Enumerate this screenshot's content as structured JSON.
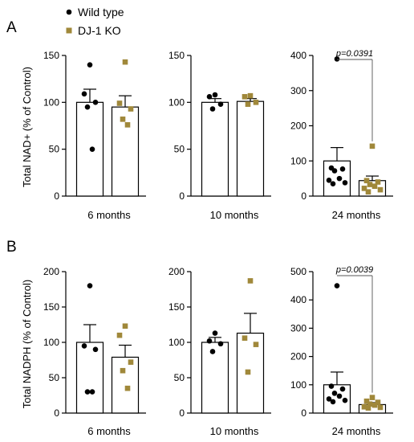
{
  "figure": {
    "panel_letters": [
      "A",
      "B"
    ],
    "legend": [
      {
        "label": "Wild type",
        "marker": "circle",
        "color": "#000000"
      },
      {
        "label": "DJ-1 KO",
        "marker": "square",
        "color": "#a0883a"
      }
    ]
  },
  "chart_data": [
    {
      "type": "bar",
      "row": 0,
      "col": 0,
      "ylabel": "Total NAD+ (% of Control)",
      "xlabel": "6 months",
      "ylim": [
        0,
        150
      ],
      "yticks": [
        0,
        50,
        100,
        150
      ],
      "categories": [
        "Wild type",
        "DJ-1 KO"
      ],
      "series": [
        {
          "name": "Wild type",
          "mean": 100,
          "sem": 14,
          "points": [
            140,
            109,
            100,
            95,
            50
          ]
        },
        {
          "name": "DJ-1 KO",
          "mean": 95,
          "sem": 12,
          "points": [
            143,
            99,
            93,
            82,
            76
          ]
        }
      ],
      "annotation": ""
    },
    {
      "type": "bar",
      "row": 0,
      "col": 1,
      "xlabel": "10 months",
      "ylim": [
        0,
        150
      ],
      "yticks": [
        0,
        50,
        100,
        150
      ],
      "categories": [
        "Wild type",
        "DJ-1 KO"
      ],
      "series": [
        {
          "name": "Wild type",
          "mean": 100,
          "sem": 4,
          "points": [
            108,
            106,
            98,
            93
          ]
        },
        {
          "name": "DJ-1 KO",
          "mean": 101,
          "sem": 3,
          "points": [
            107,
            106,
            100,
            98
          ]
        }
      ],
      "annotation": ""
    },
    {
      "type": "bar",
      "row": 0,
      "col": 2,
      "xlabel": "24 months",
      "ylim": [
        0,
        400
      ],
      "yticks": [
        0,
        100,
        200,
        300,
        400
      ],
      "categories": [
        "Wild type",
        "DJ-1 KO"
      ],
      "series": [
        {
          "name": "Wild type",
          "mean": 100,
          "sem": 38,
          "points": [
            390,
            80,
            77,
            72,
            50,
            45,
            38,
            35
          ]
        },
        {
          "name": "DJ-1 KO",
          "mean": 44,
          "sem": 13,
          "points": [
            142,
            44,
            40,
            33,
            28,
            22,
            18,
            12
          ]
        }
      ],
      "annotation": "p=0.0391"
    },
    {
      "type": "bar",
      "row": 1,
      "col": 0,
      "ylabel": "Total NADPH (% of Control)",
      "xlabel": "6 months",
      "ylim": [
        0,
        200
      ],
      "yticks": [
        0,
        50,
        100,
        150,
        200
      ],
      "categories": [
        "Wild type",
        "DJ-1 KO"
      ],
      "series": [
        {
          "name": "Wild type",
          "mean": 100,
          "sem": 25,
          "points": [
            180,
            95,
            90,
            30,
            30
          ]
        },
        {
          "name": "DJ-1 KO",
          "mean": 79,
          "sem": 17,
          "points": [
            123,
            110,
            72,
            60,
            35
          ]
        }
      ],
      "annotation": ""
    },
    {
      "type": "bar",
      "row": 1,
      "col": 1,
      "xlabel": "10 months",
      "ylim": [
        0,
        200
      ],
      "yticks": [
        0,
        50,
        100,
        150,
        200
      ],
      "categories": [
        "Wild type",
        "DJ-1 KO"
      ],
      "series": [
        {
          "name": "Wild type",
          "mean": 100,
          "sem": 7,
          "points": [
            113,
            102,
            98,
            87
          ]
        },
        {
          "name": "DJ-1 KO",
          "mean": 113,
          "sem": 28,
          "points": [
            187,
            106,
            97,
            58
          ]
        }
      ],
      "annotation": ""
    },
    {
      "type": "bar",
      "row": 1,
      "col": 2,
      "xlabel": "24 months",
      "ylim": [
        0,
        500
      ],
      "yticks": [
        0,
        100,
        200,
        300,
        400,
        500
      ],
      "categories": [
        "Wild type",
        "DJ-1 KO"
      ],
      "series": [
        {
          "name": "Wild type",
          "mean": 100,
          "sem": 45,
          "points": [
            450,
            95,
            85,
            70,
            60,
            50,
            45,
            40
          ]
        },
        {
          "name": "DJ-1 KO",
          "mean": 30,
          "sem": 7,
          "points": [
            55,
            42,
            38,
            32,
            28,
            22,
            20,
            18
          ]
        }
      ],
      "annotation": "p=0.0039"
    }
  ]
}
